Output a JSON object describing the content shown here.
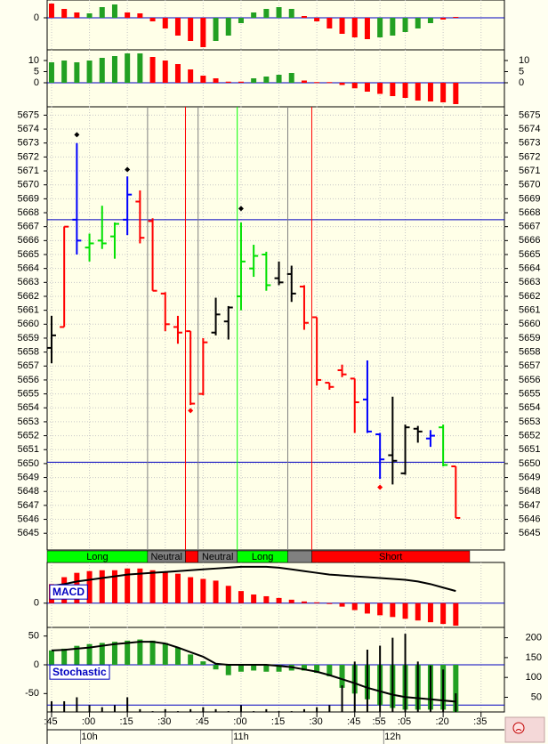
{
  "chart_data": [
    {
      "type": "bar",
      "ylim": [
        -36,
        20
      ],
      "yticks": [
        0
      ],
      "hlines": [
        0
      ],
      "values": [
        16,
        10,
        6,
        5,
        12,
        15,
        6,
        5,
        -4,
        -12,
        -20,
        -26,
        -33,
        -26,
        -20,
        -6,
        6,
        10,
        12,
        10,
        2,
        -4,
        -12,
        -18,
        -22,
        -24,
        -22,
        -20,
        -16,
        -12,
        -6,
        -2,
        1
      ],
      "colors": [
        "#ff0000",
        "#ff0000",
        "#ff0000",
        "#22a022",
        "#22a022",
        "#22a022",
        "#ff0000",
        "#ff0000",
        "#ff0000",
        "#ff0000",
        "#ff0000",
        "#ff0000",
        "#ff0000",
        "#22a022",
        "#22a022",
        "#22a022",
        "#22a022",
        "#22a022",
        "#22a022",
        "#22a022",
        "#ff0000",
        "#ff0000",
        "#ff0000",
        "#ff0000",
        "#ff0000",
        "#ff0000",
        "#22a022",
        "#22a022",
        "#22a022",
        "#22a022",
        "#22a022",
        "#ff0000",
        "#ff0000"
      ]
    },
    {
      "type": "bar",
      "ylim": [
        -10.8,
        14.8
      ],
      "yticks": [
        0,
        5,
        10
      ],
      "right_axis": true,
      "hlines": [
        0
      ],
      "values": [
        9.2,
        10,
        9.2,
        10,
        11.2,
        12,
        13.2,
        13.2,
        11.6,
        10,
        8.4,
        6,
        3.2,
        2,
        0.5,
        0.5,
        2,
        2.8,
        3.6,
        4.4,
        1,
        0.3,
        0.3,
        -1,
        -2.5,
        -4,
        -5,
        -6,
        -6.8,
        -8,
        -8.4,
        -8.8,
        -9.6
      ],
      "colors": [
        "#22a022",
        "#22a022",
        "#22a022",
        "#22a022",
        "#22a022",
        "#22a022",
        "#22a022",
        "#22a022",
        "#ff0000",
        "#ff0000",
        "#ff0000",
        "#ff0000",
        "#ff0000",
        "#ff0000",
        "#ff0000",
        "#ff0000",
        "#22a022",
        "#22a022",
        "#22a022",
        "#22a022",
        "#ff0000",
        "#ff0000",
        "#ff0000",
        "#ff0000",
        "#ff0000",
        "#ff0000",
        "#ff0000",
        "#ff0000",
        "#ff0000",
        "#ff0000",
        "#ff0000",
        "#ff0000",
        "#ff0000"
      ]
    },
    {
      "type": "ohlc",
      "ylim": [
        5643.8,
        5675.6
      ],
      "grid": true,
      "right_axis": true,
      "yticks": [
        5645,
        5646,
        5647,
        5648,
        5649,
        5650,
        5651,
        5652,
        5653,
        5654,
        5655,
        5656,
        5657,
        5658,
        5659,
        5660,
        5661,
        5662,
        5663,
        5664,
        5665,
        5666,
        5667,
        5668,
        5669,
        5670,
        5671,
        5672,
        5673,
        5674,
        5675
      ],
      "hlines": [
        5667.5,
        5650.1
      ],
      "open": [
        5658.3,
        5659.8,
        5667.5,
        5665.5,
        5666,
        5666.3,
        5667.5,
        5668.8,
        5667.4,
        5662.2,
        5659.8,
        5659.5,
        5655,
        5659.4,
        5660.2,
        5662,
        5664,
        5665,
        5663.3,
        5663.6,
        5662.7,
        5660.5,
        5655.8,
        5656.7,
        5656.1,
        5654.6,
        5652.1,
        5650.6,
        5649.3,
        5652.5,
        5651.8,
        5652.6,
        5649.8
      ],
      "high": [
        5660.6,
        5667,
        5673,
        5666.5,
        5668.5,
        5667.3,
        5670.6,
        5669.6,
        5667.6,
        5662.3,
        5660.6,
        5659.5,
        5659,
        5661.9,
        5661.3,
        5667.3,
        5665.7,
        5665.2,
        5664.5,
        5664.2,
        5662.8,
        5660.5,
        5655.8,
        5657.1,
        5656.1,
        5657.4,
        5652.2,
        5654.8,
        5652.8,
        5652.7,
        5652.4,
        5652.8,
        5649.8
      ],
      "low": [
        5657.2,
        5659.8,
        5665,
        5664.5,
        5665.4,
        5664.7,
        5666.4,
        5665.8,
        5662.4,
        5659.5,
        5658.6,
        5654.2,
        5654.9,
        5659.2,
        5658.9,
        5661,
        5663.4,
        5662.4,
        5662.8,
        5661.6,
        5659.6,
        5655.6,
        5655.3,
        5656.2,
        5652.2,
        5652.2,
        5648.9,
        5648.5,
        5649.2,
        5651.5,
        5651.2,
        5649.8,
        5646.1
      ],
      "close": [
        5659.2,
        5667,
        5666,
        5665.8,
        5665.8,
        5667.2,
        5669.3,
        5666.2,
        5662.4,
        5660,
        5659.4,
        5654.3,
        5658.7,
        5660.7,
        5661.2,
        5664.5,
        5664.9,
        5662.8,
        5663,
        5662.2,
        5660.1,
        5656,
        5655.5,
        5656.4,
        5654.4,
        5652.3,
        5650.3,
        5650.2,
        5652.6,
        5652.3,
        5652,
        5649.9,
        5646.1
      ],
      "bar_colors": [
        "#000000",
        "#ff0000",
        "#0000ff",
        "#00e000",
        "#00e000",
        "#00e000",
        "#0000ff",
        "#ff0000",
        "#ff0000",
        "#ff0000",
        "#ff0000",
        "#ff0000",
        "#ff0000",
        "#000000",
        "#000000",
        "#00e000",
        "#00e000",
        "#00e000",
        "#000000",
        "#000000",
        "#ff0000",
        "#ff0000",
        "#ff0000",
        "#ff0000",
        "#ff0000",
        "#0000ff",
        "#0000ff",
        "#000000",
        "#000000",
        "#000000",
        "#0000ff",
        "#00e000",
        "#ff0000"
      ],
      "markers": {
        "x": [
          2,
          6,
          11,
          15,
          26
        ],
        "values": [
          5673.6,
          5671.1,
          5653.8,
          5668.3,
          5648.3
        ],
        "colors": [
          "#000000",
          "#000000",
          "#ff0000",
          "#000000",
          "#ff0000"
        ]
      },
      "regimes": [
        {
          "label": "Long",
          "start": -0.35,
          "end": 7.6,
          "color": "#00ff00"
        },
        {
          "label": "Neutral",
          "start": 7.6,
          "end": 10.6,
          "color": "#808080"
        },
        {
          "label": null,
          "start": 10.6,
          "end": 11.6,
          "color": "#ff0000"
        },
        {
          "label": "Neutral",
          "start": 11.6,
          "end": 14.7,
          "color": "#808080"
        },
        {
          "label": "Long",
          "start": 14.7,
          "end": 18.7,
          "color": "#00ff00"
        },
        {
          "label": null,
          "start": 18.7,
          "end": 20.6,
          "color": "#808080"
        },
        {
          "label": "Short",
          "start": 20.6,
          "end": 33.1,
          "color": "#ff0000"
        }
      ]
    },
    {
      "type": "macd",
      "label": "MACD",
      "ylim": [
        -28,
        47
      ],
      "yticks": [
        0
      ],
      "hlines": [
        0
      ],
      "color": "#ff0000",
      "values": [
        22,
        30,
        35,
        37,
        38,
        38,
        40,
        40,
        38,
        36,
        34,
        30,
        28,
        26,
        20,
        14,
        10,
        8,
        6,
        4,
        2,
        1,
        -1,
        -4,
        -8,
        -12,
        -14,
        -16,
        -18,
        -20,
        -22,
        -24,
        -26
      ],
      "line": [
        20,
        22,
        25,
        27,
        29,
        31,
        33,
        34,
        35,
        36,
        37,
        38,
        39,
        40,
        41,
        42,
        42,
        42,
        41,
        39,
        37,
        35,
        33,
        32,
        31,
        30,
        29,
        28,
        27,
        25,
        22,
        18,
        14
      ]
    },
    {
      "type": "stochastic",
      "label": "Stochastic",
      "ylim": [
        -82,
        65
      ],
      "yticks": [
        -50,
        0,
        50
      ],
      "hlines": [
        0,
        -70
      ],
      "color": "#22a022",
      "y2lim": [
        13,
        226
      ],
      "y2ticks": [
        50,
        100,
        150,
        200
      ],
      "values": [
        25,
        28,
        33,
        36,
        38,
        40,
        42,
        44,
        42,
        38,
        30,
        18,
        6,
        -8,
        -18,
        -12,
        -10,
        -12,
        -12,
        -10,
        -10,
        -14,
        -20,
        -40,
        -50,
        -60,
        -70,
        -75,
        -78,
        -78,
        -78,
        -78,
        -82
      ],
      "line": [
        25,
        26,
        28,
        30,
        33,
        36,
        38,
        40,
        40,
        37,
        30,
        22,
        14,
        2,
        0,
        0,
        0,
        0,
        -2,
        -4,
        -8,
        -12,
        -18,
        -25,
        -32,
        -40,
        -46,
        -52,
        -56,
        -58,
        -60,
        -62,
        -64
      ],
      "volume": {
        "axis": "y2",
        "values": [
          40,
          40,
          50,
          30,
          25,
          30,
          50,
          20,
          15,
          20,
          15,
          20,
          25,
          20,
          15,
          30,
          15,
          20,
          15,
          15,
          20,
          25,
          30,
          80,
          140,
          170,
          180,
          200,
          210,
          140,
          130,
          120,
          60
        ]
      },
      "xlim": [
        -0.35,
        35.85
      ],
      "xticks": [
        {
          "value": 0,
          "label": ":45"
        },
        {
          "value": 3,
          "label": ":00"
        },
        {
          "value": 6,
          "label": ":15"
        },
        {
          "value": 9,
          "label": ":30"
        },
        {
          "value": 12,
          "label": ":45"
        },
        {
          "value": 15,
          "label": ":00"
        },
        {
          "value": 18,
          "label": ":15"
        },
        {
          "value": 21,
          "label": ":30"
        },
        {
          "value": 24,
          "label": ":45"
        },
        {
          "value": 26,
          "label": ":55"
        },
        {
          "value": 28,
          "label": ":05"
        },
        {
          "value": 31,
          "label": ":20"
        },
        {
          "value": 34,
          "label": ":35"
        }
      ],
      "hour_labels": [
        {
          "value": 3,
          "label": "10h"
        },
        {
          "value": 15,
          "label": "11h"
        },
        {
          "value": 27,
          "label": "12h"
        }
      ]
    }
  ]
}
